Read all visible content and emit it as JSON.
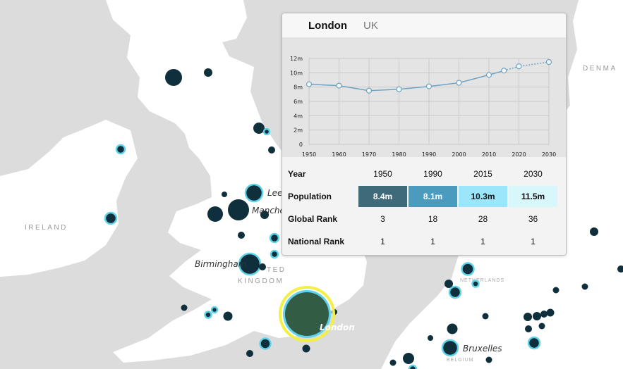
{
  "map": {
    "country_labels": [
      {
        "text": "IRELAND",
        "name": "country-label-ireland"
      },
      {
        "text": "TED",
        "name": "country-label-united"
      },
      {
        "text": "KINGDOM",
        "name": "country-label-kingdom"
      },
      {
        "text": "DENMA",
        "name": "country-label-denmark"
      },
      {
        "text": "NETHERLANDS",
        "name": "country-label-netherlands"
      },
      {
        "text": "BELGIUM",
        "name": "country-label-belgium"
      }
    ],
    "city_labels": [
      {
        "text": "Leed",
        "name": "city-label-leeds"
      },
      {
        "text": "Manches",
        "name": "city-label-manchester"
      },
      {
        "text": "Birmingham",
        "name": "city-label-birmingham"
      },
      {
        "text": "London",
        "name": "city-label-london"
      },
      {
        "text": "Bruxelles",
        "name": "city-label-bruxelles"
      }
    ],
    "selected_color": "#335c45",
    "selected_ring_color": "#f2ef45",
    "dot_color": "#0f2f3d",
    "highlight_ring_color": "#5fd2e8"
  },
  "popup": {
    "city": "London",
    "country": "UK",
    "table": {
      "header_label": "Year",
      "years": [
        "1950",
        "1990",
        "2015",
        "2030"
      ],
      "rows": [
        {
          "label": "Population",
          "values": [
            "8.4m",
            "8.1m",
            "10.3m",
            "11.5m"
          ],
          "colors": [
            "#3f6a7a",
            "#4a9bbd",
            "#9be6fb",
            "#d8f7fb"
          ],
          "text_colors": [
            "#ffffff",
            "#ffffff",
            "#111111",
            "#111111"
          ]
        },
        {
          "label": "Global Rank",
          "values": [
            "3",
            "18",
            "28",
            "36"
          ]
        },
        {
          "label": "National Rank",
          "values": [
            "1",
            "1",
            "1",
            "1"
          ]
        }
      ]
    }
  },
  "chart_data": {
    "type": "line",
    "x": [
      1950,
      1960,
      1970,
      1980,
      1990,
      2000,
      2010,
      2015,
      2020,
      2030
    ],
    "series": [
      {
        "values": [
          8.4,
          8.2,
          7.5,
          7.7,
          8.1,
          8.6,
          9.7,
          10.3,
          10.9,
          11.5
        ],
        "projected_from": 2015
      }
    ],
    "y_ticks": [
      "0",
      "2m",
      "4m",
      "6m",
      "8m",
      "10m",
      "12m"
    ],
    "x_ticks": [
      "1950",
      "1960",
      "1970",
      "1980",
      "1990",
      "2000",
      "2010",
      "2020",
      "2030"
    ],
    "xlim": [
      1950,
      2030
    ],
    "ylim": [
      0,
      12
    ],
    "grid": true,
    "line_color": "#6fa3c4",
    "point_fill": "#f4f8fb"
  }
}
